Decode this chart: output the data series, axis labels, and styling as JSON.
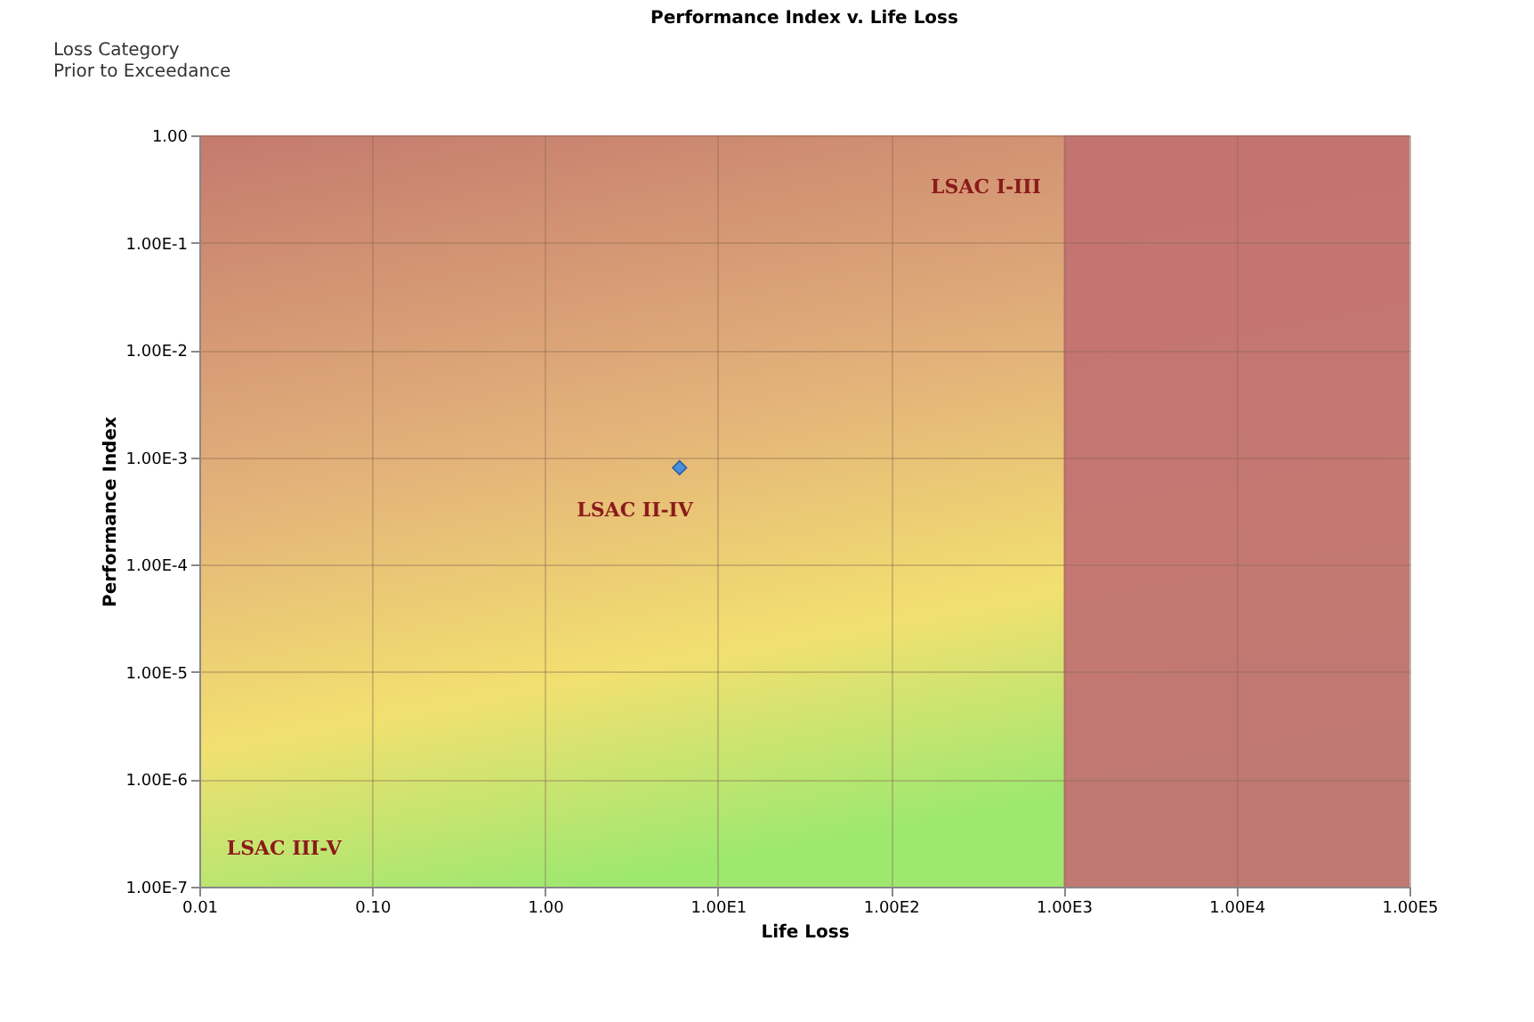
{
  "chart_data": {
    "type": "scatter",
    "title": "Performance Index v. Life Loss",
    "xlabel": "Life Loss",
    "ylabel": "Performance Index",
    "x": [
      6
    ],
    "series": [
      {
        "color": "#4a8fdc",
        "values": [
          0.0008
        ]
      }
    ],
    "log": "xy",
    "marker": "diamond",
    "grid": true,
    "xlim": [
      0.01,
      100000
    ],
    "ylim": [
      1e-07,
      1
    ],
    "xticks": [
      {
        "value": 0.01,
        "label": "0.01"
      },
      {
        "value": 0.1,
        "label": "0.10"
      },
      {
        "value": 1,
        "label": "1.00"
      },
      {
        "value": 10,
        "label": "1.00E1"
      },
      {
        "value": 100,
        "label": "1.00E2"
      },
      {
        "value": 1000,
        "label": "1.00E3"
      },
      {
        "value": 10000,
        "label": "1.00E4"
      },
      {
        "value": 100000,
        "label": "1.00E5"
      }
    ],
    "yticks": [
      {
        "value": 1e-07,
        "label": "1.00E-7"
      },
      {
        "value": 1e-06,
        "label": "1.00E-6"
      },
      {
        "value": 1e-05,
        "label": "1.00E-5"
      },
      {
        "value": 0.0001,
        "label": "1.00E-4"
      },
      {
        "value": 0.001,
        "label": "1.00E-3"
      },
      {
        "value": 0.01,
        "label": "1.00E-2"
      },
      {
        "value": 0.1,
        "label": "1.00E-1"
      },
      {
        "value": 1,
        "label": "1.00"
      }
    ],
    "bands": [
      {
        "axis": "x",
        "from": 1000,
        "to": 100000,
        "color": "#c27272"
      }
    ],
    "annotations": [
      "Loss Category",
      "Prior to Exceedance",
      "LSAC I-III",
      "LSAC II-IV",
      "LSAC III-V"
    ]
  }
}
